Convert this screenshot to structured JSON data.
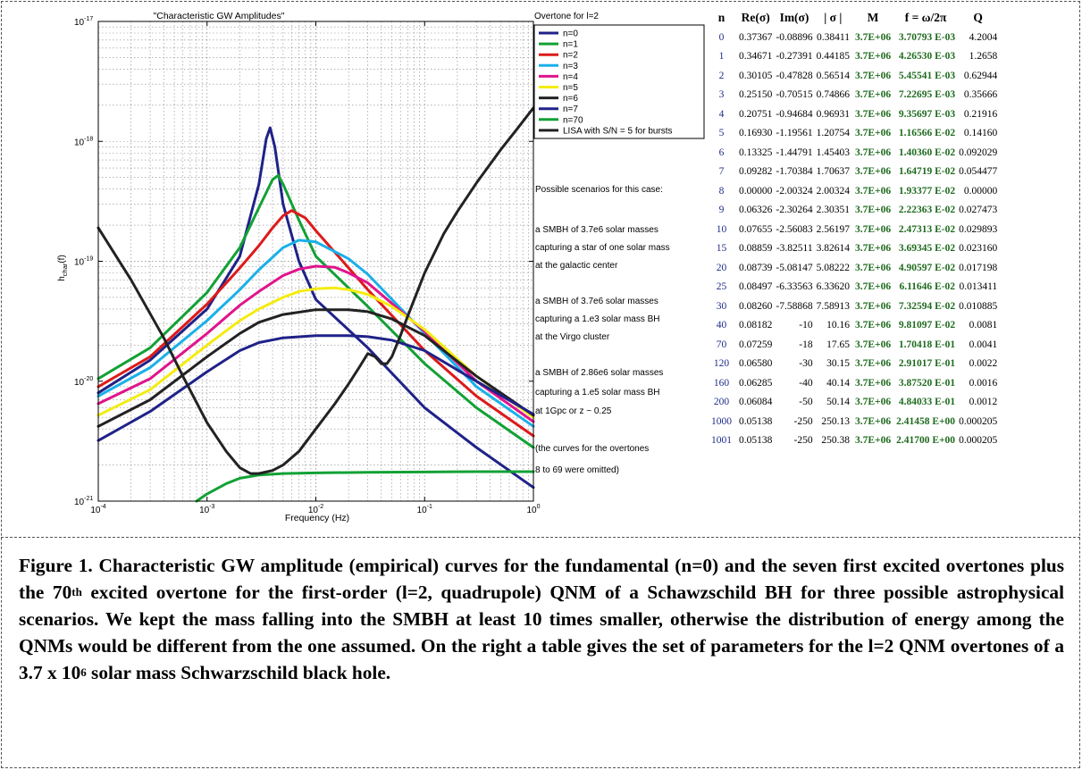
{
  "chart_data": {
    "type": "line",
    "title": "\"Characteristic GW Amplitudes\"",
    "xlabel": "Frequency (Hz)",
    "ylabel": "h_char(f)",
    "x_scale": "log",
    "y_scale": "log",
    "xlim": [
      0.0001,
      1
    ],
    "ylim": [
      1e-21,
      1e-17
    ],
    "grid": true,
    "x_ticks": [
      {
        "base": "10",
        "exp": "-4"
      },
      {
        "base": "10",
        "exp": "-3"
      },
      {
        "base": "10",
        "exp": "-2"
      },
      {
        "base": "10",
        "exp": "-1"
      },
      {
        "base": "10",
        "exp": "0"
      }
    ],
    "y_ticks": [
      {
        "base": "10",
        "exp": "-21"
      },
      {
        "base": "10",
        "exp": "-20"
      },
      {
        "base": "10",
        "exp": "-19"
      },
      {
        "base": "10",
        "exp": "-18"
      },
      {
        "base": "10",
        "exp": "-17"
      }
    ],
    "legend_title": "Overtone for l=2",
    "legend_position": "top-right",
    "series": [
      {
        "name": "n=0",
        "color": "#1f2288",
        "x": [
          0.0001,
          0.0003,
          0.001,
          0.002,
          0.003,
          0.0035,
          0.0038,
          0.0042,
          0.005,
          0.007,
          0.01,
          0.03,
          0.1,
          0.3,
          1
        ],
        "y": [
          8e-21,
          1.5e-20,
          4e-20,
          1.1e-19,
          4.4e-19,
          1.05e-18,
          1.3e-18,
          9e-19,
          3e-19,
          1e-19,
          4.8e-20,
          1.9e-20,
          6e-21,
          2.8e-21,
          1.3e-21
        ]
      },
      {
        "name": "n=1",
        "color": "#12a135",
        "x": [
          0.0001,
          0.0003,
          0.001,
          0.002,
          0.003,
          0.004,
          0.0045,
          0.005,
          0.007,
          0.01,
          0.03,
          0.1,
          0.3,
          1
        ],
        "y": [
          1.05e-20,
          1.9e-20,
          5.5e-20,
          1.3e-19,
          2.8e-19,
          4.8e-19,
          5.2e-19,
          4.4e-19,
          2.2e-19,
          1.1e-19,
          4.2e-20,
          1.4e-20,
          6e-21,
          2.8e-21
        ]
      },
      {
        "name": "n=2",
        "color": "#dd1a1a",
        "x": [
          0.0001,
          0.0003,
          0.001,
          0.002,
          0.003,
          0.004,
          0.005,
          0.006,
          0.008,
          0.01,
          0.02,
          0.03,
          0.1,
          0.3,
          1
        ],
        "y": [
          9e-21,
          1.6e-20,
          4.4e-20,
          8.8e-20,
          1.35e-19,
          1.9e-19,
          2.4e-19,
          2.65e-19,
          2.3e-19,
          1.8e-19,
          8.8e-20,
          5.8e-20,
          1.8e-20,
          7.5e-21,
          3.5e-21
        ]
      },
      {
        "name": "n=3",
        "color": "#1ab0e8",
        "x": [
          0.0001,
          0.0003,
          0.001,
          0.002,
          0.003,
          0.004,
          0.005,
          0.007,
          0.01,
          0.02,
          0.03,
          0.1,
          0.3,
          1
        ],
        "y": [
          7.5e-21,
          1.3e-20,
          3.2e-20,
          5.8e-20,
          8.5e-20,
          1.08e-19,
          1.3e-19,
          1.5e-19,
          1.45e-19,
          1.05e-19,
          7.8e-20,
          2.5e-20,
          9e-21,
          4.2e-21
        ]
      },
      {
        "name": "n=4",
        "color": "#e0148c",
        "x": [
          0.0001,
          0.0003,
          0.001,
          0.002,
          0.003,
          0.005,
          0.007,
          0.01,
          0.015,
          0.02,
          0.03,
          0.1,
          0.3,
          1
        ],
        "y": [
          6.5e-21,
          1.05e-20,
          2.5e-20,
          4.3e-20,
          5.6e-20,
          7.6e-20,
          8.6e-20,
          9.1e-20,
          8.9e-20,
          8e-20,
          6.6e-20,
          2.6e-20,
          1e-20,
          4.6e-21
        ]
      },
      {
        "name": "n=5",
        "color": "#f4ec10",
        "x": [
          0.0001,
          0.0003,
          0.001,
          0.002,
          0.003,
          0.005,
          0.007,
          0.01,
          0.015,
          0.02,
          0.03,
          0.05,
          0.1,
          0.3,
          1
        ],
        "y": [
          5.2e-21,
          8.5e-21,
          2e-20,
          3.2e-20,
          4e-20,
          5e-20,
          5.6e-20,
          5.9e-20,
          6e-20,
          5.8e-20,
          5.3e-20,
          4.2e-20,
          2.7e-20,
          1.1e-20,
          5e-21
        ]
      },
      {
        "name": "n=6",
        "color": "#222222",
        "x": [
          0.0001,
          0.0003,
          0.001,
          0.002,
          0.003,
          0.005,
          0.01,
          0.02,
          0.03,
          0.05,
          0.1,
          0.3,
          1
        ],
        "y": [
          4.2e-21,
          7e-21,
          1.6e-20,
          2.5e-20,
          3.1e-20,
          3.6e-20,
          3.95e-20,
          3.95e-20,
          3.8e-20,
          3.3e-20,
          2.4e-20,
          1.1e-20,
          5.2e-21
        ]
      },
      {
        "name": "n=7",
        "color": "#1f2288",
        "x": [
          0.0001,
          0.0003,
          0.001,
          0.002,
          0.003,
          0.005,
          0.01,
          0.02,
          0.03,
          0.05,
          0.1,
          0.3,
          1
        ],
        "y": [
          3.2e-21,
          5.6e-21,
          1.2e-20,
          1.8e-20,
          2.1e-20,
          2.3e-20,
          2.4e-20,
          2.4e-20,
          2.35e-20,
          2.2e-20,
          1.8e-20,
          1e-20,
          5.3e-21
        ]
      },
      {
        "name": "n=70",
        "color": "#12a135",
        "x": [
          0.0008,
          0.001,
          0.0015,
          0.002,
          0.003,
          0.005,
          0.01,
          0.03,
          0.1,
          0.3,
          1
        ],
        "y": [
          1e-21,
          1.15e-21,
          1.4e-21,
          1.55e-21,
          1.65e-21,
          1.7e-21,
          1.72e-21,
          1.74e-21,
          1.75e-21,
          1.76e-21,
          1.76e-21
        ]
      },
      {
        "name": "LISA with S/N = 5 for bursts",
        "color": "#222222",
        "x": [
          0.0001,
          0.0002,
          0.0004,
          0.0006,
          0.001,
          0.0015,
          0.002,
          0.0025,
          0.003,
          0.004,
          0.005,
          0.007,
          0.01,
          0.015,
          0.02,
          0.025,
          0.03,
          0.035,
          0.04,
          0.045,
          0.05,
          0.06,
          0.07,
          0.1,
          0.15,
          0.2,
          0.3,
          0.5,
          0.7,
          1
        ],
        "y": [
          1.9e-19,
          7e-20,
          2.3e-20,
          1.1e-20,
          4.5e-21,
          2.6e-21,
          1.9e-21,
          1.7e-21,
          1.7e-21,
          1.8e-21,
          2e-21,
          2.6e-21,
          4e-21,
          6.5e-21,
          9.5e-21,
          1.3e-20,
          1.7e-20,
          1.6e-20,
          1.4e-20,
          1.4e-20,
          1.6e-20,
          2.4e-20,
          3.5e-20,
          8e-20,
          1.7e-19,
          2.6e-19,
          4.5e-19,
          8.5e-19,
          1.25e-18,
          1.9e-18
        ]
      }
    ],
    "annotations": [
      "Possible scenarios for this case:",
      "a SMBH of 3.7e6 solar masses",
      "capturing a star of one solar mass",
      "at the galactic center",
      "a SMBH of 3.7e6 solar masses",
      "capturing a 1.e3 solar mass BH",
      "at the Virgo cluster",
      "a SMBH of 2.86e6 solar masses",
      "capturing a 1.e5 solar mass BH",
      "at 1Gpc or z ~ 0.25",
      "(the curves for the overtones",
      "8 to 69 were omitted)"
    ]
  },
  "table": {
    "headers": [
      "n",
      "Re(σ)",
      "Im(σ)",
      "| σ |",
      "M",
      "f = ω/2π",
      "Q"
    ],
    "rows": [
      [
        "0",
        "0.37367",
        "-0.08896",
        "0.38411",
        "3.7E+06",
        "3.70793 E-03",
        "4.2004"
      ],
      [
        "1",
        "0.34671",
        "-0.27391",
        "0.44185",
        "3.7E+06",
        "4.26530 E-03",
        "1.2658"
      ],
      [
        "2",
        "0.30105",
        "-0.47828",
        "0.56514",
        "3.7E+06",
        "5.45541 E-03",
        "0.62944"
      ],
      [
        "3",
        "0.25150",
        "-0.70515",
        "0.74866",
        "3.7E+06",
        "7.22695 E-03",
        "0.35666"
      ],
      [
        "4",
        "0.20751",
        "-0.94684",
        "0.96931",
        "3.7E+06",
        "9.35697 E-03",
        "0.21916"
      ],
      [
        "5",
        "0.16930",
        "-1.19561",
        "1.20754",
        "3.7E+06",
        "1.16566 E-02",
        "0.14160"
      ],
      [
        "6",
        "0.13325",
        "-1.44791",
        "1.45403",
        "3.7E+06",
        "1.40360 E-02",
        "0.092029"
      ],
      [
        "7",
        "0.09282",
        "-1.70384",
        "1.70637",
        "3.7E+06",
        "1.64719 E-02",
        "0.054477"
      ],
      [
        "8",
        "0.00000",
        "-2.00324",
        "2.00324",
        "3.7E+06",
        "1.93377 E-02",
        "0.00000"
      ],
      [
        "9",
        "0.06326",
        "-2.30264",
        "2.30351",
        "3.7E+06",
        "2.22363 E-02",
        "0.027473"
      ],
      [
        "10",
        "0.07655",
        "-2.56083",
        "2.56197",
        "3.7E+06",
        "2.47313 E-02",
        "0.029893"
      ],
      [
        "15",
        "0.08859",
        "-3.82511",
        "3.82614",
        "3.7E+06",
        "3.69345 E-02",
        "0.023160"
      ],
      [
        "20",
        "0.08739",
        "-5.08147",
        "5.08222",
        "3.7E+06",
        "4.90597 E-02",
        "0.017198"
      ],
      [
        "25",
        "0.08497",
        "-6.33563",
        "6.33620",
        "3.7E+06",
        "6.11646 E-02",
        "0.013411"
      ],
      [
        "30",
        "0.08260",
        "-7.58868",
        "7.58913",
        "3.7E+06",
        "7.32594 E-02",
        "0.010885"
      ],
      [
        "40",
        "0.08182",
        "-10",
        "10.16",
        "3.7E+06",
        "9.81097 E-02",
        "0.0081"
      ],
      [
        "70",
        "0.07259",
        "-18",
        "17.65",
        "3.7E+06",
        "1.70418 E-01",
        "0.0041"
      ],
      [
        "120",
        "0.06580",
        "-30",
        "30.15",
        "3.7E+06",
        "2.91017 E-01",
        "0.0022"
      ],
      [
        "160",
        "0.06285",
        "-40",
        "40.14",
        "3.7E+06",
        "3.87520 E-01",
        "0.0016"
      ],
      [
        "200",
        "0.06084",
        "-50",
        "50.14",
        "3.7E+06",
        "4.84033 E-01",
        "0.0012"
      ],
      [
        "1000",
        "0.05138",
        "-250",
        "250.13",
        "3.7E+06",
        "2.41458 E+00",
        "0.000205"
      ],
      [
        "1001",
        "0.05138",
        "-250",
        "250.38",
        "3.7E+06",
        "2.41700 E+00",
        "0.000205"
      ]
    ]
  },
  "caption": {
    "part1": "Figure 1. Characteristic GW amplitude (empirical) curves for the fundamental (n=0) and the seven first excited overtones plus the 70",
    "sup1": "th",
    "part2": " excited overtone for the first-order (l=2, quadrupole) QNM of a Schawzschild BH for three possible astrophysical scenarios. We kept the mass falling into the SMBH at least 10 times smaller, otherwise the distribution of energy among the QNMs would be different from the one assumed. On the right a table gives the set of parameters for the l=2 QNM overtones of a 3.7 x 10",
    "sup2": "6",
    "part3": " solar mass Schwarzschild black hole."
  }
}
